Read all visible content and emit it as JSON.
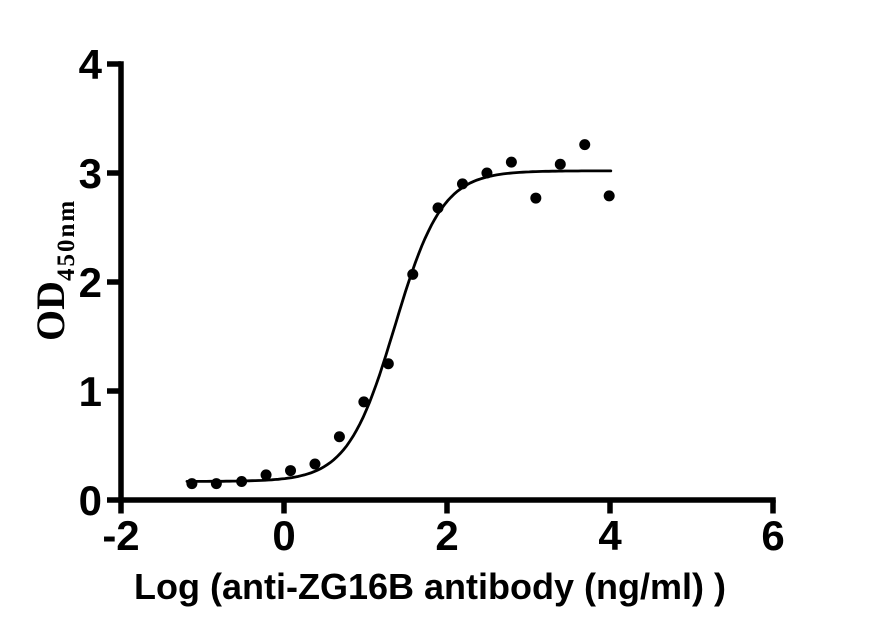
{
  "chart_data": {
    "type": "scatter",
    "title": "",
    "xlabel": "Log (anti-ZG16B antibody (ng/ml) )",
    "ylabel_base": "OD",
    "ylabel_subscript": "450nm",
    "xlim": [
      -2,
      6
    ],
    "ylim": [
      0,
      4
    ],
    "xticks": [
      -2,
      0,
      2,
      4,
      6
    ],
    "yticks": [
      0,
      1,
      2,
      3,
      4
    ],
    "grid": false,
    "legend": null,
    "marker_color": "#000000",
    "curve_color": "#000000",
    "axis_color": "#000000",
    "background_color": "#ffffff",
    "points": [
      {
        "x": -1.13,
        "y": 0.15
      },
      {
        "x": -0.83,
        "y": 0.15
      },
      {
        "x": -0.52,
        "y": 0.17
      },
      {
        "x": -0.22,
        "y": 0.23
      },
      {
        "x": 0.08,
        "y": 0.27
      },
      {
        "x": 0.38,
        "y": 0.33
      },
      {
        "x": 0.68,
        "y": 0.58
      },
      {
        "x": 0.98,
        "y": 0.9
      },
      {
        "x": 1.28,
        "y": 1.25
      },
      {
        "x": 1.58,
        "y": 2.07
      },
      {
        "x": 1.89,
        "y": 2.68
      },
      {
        "x": 2.19,
        "y": 2.9
      },
      {
        "x": 2.49,
        "y": 3.0
      },
      {
        "x": 2.79,
        "y": 3.1
      },
      {
        "x": 3.09,
        "y": 2.77
      },
      {
        "x": 3.39,
        "y": 3.08
      },
      {
        "x": 3.69,
        "y": 3.26
      },
      {
        "x": 3.99,
        "y": 2.79
      }
    ],
    "fit_curve": {
      "model": "4PL",
      "bottom": 0.17,
      "top": 3.02,
      "logEC50": 1.36,
      "hillslope": 1.5,
      "x_start": -1.19,
      "x_end": 4.02
    }
  }
}
